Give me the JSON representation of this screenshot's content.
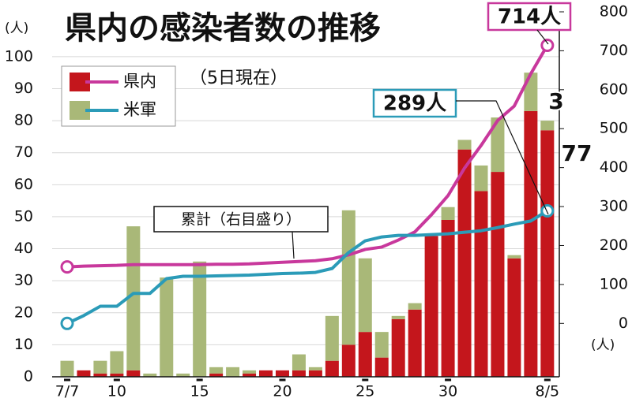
{
  "chart_data": {
    "type": "bar",
    "title": "県内の感染者数の推移",
    "subtitle": "（5日現在）",
    "y_label": "(人)",
    "y2_label": "(人)",
    "categories": [
      "7/7",
      null,
      null,
      "10",
      null,
      null,
      null,
      null,
      "15",
      null,
      null,
      null,
      null,
      "20",
      null,
      null,
      null,
      null,
      "25",
      null,
      null,
      null,
      null,
      "30",
      null,
      null,
      null,
      null,
      null,
      "8/5"
    ],
    "series": [
      {
        "name": "県内",
        "color": "#c4161c",
        "line_color": "#c8389c",
        "values": [
          0,
          2,
          1,
          1,
          2,
          0,
          0,
          0,
          0,
          1,
          0,
          1,
          2,
          2,
          2,
          2,
          5,
          10,
          14,
          6,
          18,
          21,
          44,
          49,
          71,
          58,
          64,
          37,
          83,
          77
        ],
        "cumulative": [
          145,
          147,
          148,
          149,
          151,
          151,
          151,
          151,
          151,
          152,
          152,
          153,
          155,
          157,
          159,
          161,
          166,
          176,
          190,
          196,
          214,
          235,
          279,
          328,
          399,
          457,
          521,
          558,
          641,
          714
        ]
      },
      {
        "name": "米軍",
        "color": "#a9b878",
        "line_color": "#2b9bb8",
        "values": [
          5,
          0,
          4,
          7,
          45,
          1,
          31,
          1,
          36,
          2,
          3,
          1,
          0,
          0,
          5,
          1,
          14,
          42,
          23,
          8,
          1,
          2,
          0,
          4,
          3,
          8,
          17,
          1,
          12,
          3
        ],
        "cumulative": [
          0,
          20,
          44,
          44,
          77,
          77,
          115,
          121,
          121,
          122,
          123,
          124,
          126,
          128,
          129,
          131,
          141,
          182,
          212,
          222,
          226,
          226,
          228,
          230,
          234,
          238,
          246,
          255,
          263,
          289
        ]
      }
    ],
    "ylim": [
      0,
      114
    ],
    "yticks": [
      0,
      10,
      20,
      30,
      40,
      50,
      60,
      70,
      80,
      90,
      100
    ],
    "y2lim": [
      -137,
      800
    ],
    "y2ticks": [
      0,
      100,
      200,
      300,
      400,
      500,
      600,
      700,
      800
    ],
    "grid": true,
    "annotations": [
      "累計（右目盛り）",
      "714人",
      "289人",
      "3",
      "77"
    ]
  }
}
